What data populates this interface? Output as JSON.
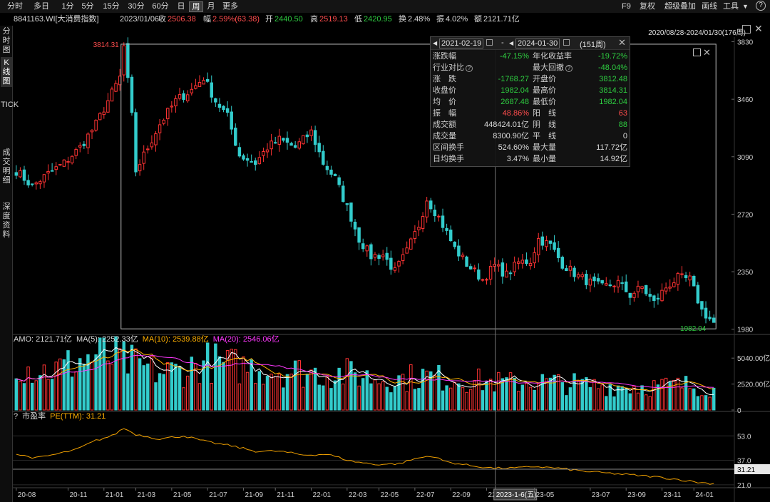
{
  "toolbar": {
    "periods": [
      "分时",
      "多日",
      "1分",
      "5分",
      "15分",
      "30分",
      "60分",
      "日",
      "周",
      "月",
      "更多"
    ],
    "active_period": "周",
    "right_items": [
      "F9",
      "复权",
      "超级叠加",
      "画线",
      "工具"
    ]
  },
  "info": {
    "code_name": "8841163.WI[大消费指数]",
    "date": "2023/01/06",
    "close_label": "收",
    "close": "2506.38",
    "change_label": "幅",
    "change": "2.59%(63.38)",
    "open_label": "开",
    "open": "2440.50",
    "high_label": "高",
    "high": "2519.13",
    "low_label": "低",
    "low": "2420.95",
    "turnover_label": "换",
    "turnover": "2.48%",
    "amplitude_label": "振",
    "amplitude": "4.02%",
    "amount_label": "额",
    "amount": "2121.71亿"
  },
  "sidebar": {
    "tabs": [
      "分时图",
      "K线图",
      "TICK",
      "成交明细",
      "深度资料"
    ],
    "active": "K线图"
  },
  "range_label": "2020/08/28-2024/01/30(176周)",
  "popup": {
    "start_date": "2021-02-19",
    "end_date": "2024-01-30",
    "sep": "-",
    "weeks": "(151周)",
    "rows": [
      {
        "l1": "涨跌幅",
        "v1": "-47.15%",
        "c1": "g",
        "l2": "年化收益率",
        "v2": "-19.72%",
        "c2": "g"
      },
      {
        "l1": "行业对比",
        "q1": true,
        "v1": "",
        "c1": "w",
        "l2": "最大回撤",
        "q2": true,
        "v2": "-48.04%",
        "c2": "g"
      },
      {
        "l1": "涨　跌",
        "v1": "-1768.27",
        "c1": "g",
        "l2": "开盘价",
        "v2": "3812.48",
        "c2": "g"
      },
      {
        "l1": "收盘价",
        "v1": "1982.04",
        "c1": "g",
        "l2": "最高价",
        "v2": "3814.31",
        "c2": "g"
      },
      {
        "l1": "均　价",
        "v1": "2687.48",
        "c1": "g",
        "l2": "最低价",
        "v2": "1982.04",
        "c2": "g"
      },
      {
        "l1": "振　幅",
        "v1": "48.86%",
        "c1": "r",
        "l2": "阳　线",
        "v2": "63",
        "c2": "r"
      },
      {
        "l1": "成交额",
        "v1": "448424.01亿",
        "c1": "w",
        "l2": "阴　线",
        "v2": "88",
        "c2": "g"
      },
      {
        "l1": "成交量",
        "v1": "8300.90亿",
        "c1": "w",
        "l2": "平　线",
        "v2": "0",
        "c2": "w"
      },
      {
        "l1": "区间换手",
        "v1": "524.60%",
        "c1": "w",
        "l2": "最大量",
        "v2": "117.72亿",
        "c2": "w"
      },
      {
        "l1": "日均换手",
        "v1": "3.47%",
        "c1": "w",
        "l2": "最小量",
        "v2": "14.92亿",
        "c2": "w"
      }
    ]
  },
  "volume_header": {
    "amo": "AMO: 2121.71亿",
    "ma5": "MA(5): 2252.33亿",
    "ma10": "MA(10): 2539.88亿",
    "ma20": "MA(20): 2546.06亿"
  },
  "pe_header": {
    "q": "?",
    "label": "市盈率",
    "pe": "PE(TTM): 31.21"
  },
  "colors": {
    "up": "#ff3333",
    "down": "#33cccc",
    "ma5": "#ffffff",
    "ma10": "#ffb000",
    "ma20": "#ff38ff",
    "pe": "#f0a000"
  },
  "chart_data": [
    {
      "type": "candlestick",
      "title": "8841163.WI[大消费指数] 周K线",
      "x_ticks": [
        "20-08",
        "20-11",
        "21-01",
        "21-03",
        "21-05",
        "21-07",
        "21-09",
        "21-11",
        "22-01",
        "22-03",
        "22-05",
        "22-07",
        "22-09",
        "22-11",
        "2023-1-6(五)",
        "23-05",
        "23-07",
        "23-09",
        "23-11",
        "24-01"
      ],
      "y_ticks": [
        1980,
        2350,
        2720,
        3090,
        3460,
        3830
      ],
      "ylim": [
        1960,
        3860
      ],
      "weeks": 176,
      "selection": {
        "start": "2021-02-19",
        "end": "2024-01-30",
        "high_label": "3814.31",
        "low_label": "1982.04"
      },
      "close_anchors": [
        [
          0,
          3000
        ],
        [
          4,
          2900
        ],
        [
          8,
          2980
        ],
        [
          12,
          3050
        ],
        [
          16,
          3150
        ],
        [
          20,
          3300
        ],
        [
          24,
          3500
        ],
        [
          26,
          3600
        ],
        [
          27,
          3800
        ],
        [
          29,
          3350
        ],
        [
          30,
          3000
        ],
        [
          33,
          3150
        ],
        [
          36,
          3300
        ],
        [
          40,
          3450
        ],
        [
          44,
          3520
        ],
        [
          47,
          3600
        ],
        [
          50,
          3450
        ],
        [
          53,
          3350
        ],
        [
          56,
          3100
        ],
        [
          60,
          3050
        ],
        [
          63,
          3150
        ],
        [
          66,
          3200
        ],
        [
          70,
          3150
        ],
        [
          74,
          3250
        ],
        [
          77,
          3050
        ],
        [
          80,
          2950
        ],
        [
          84,
          2700
        ],
        [
          86,
          2560
        ],
        [
          89,
          2450
        ],
        [
          92,
          2460
        ],
        [
          95,
          2350
        ],
        [
          98,
          2480
        ],
        [
          101,
          2650
        ],
        [
          103,
          2820
        ],
        [
          106,
          2700
        ],
        [
          110,
          2500
        ],
        [
          113,
          2400
        ],
        [
          117,
          2300
        ],
        [
          120,
          2390
        ],
        [
          123,
          2330
        ],
        [
          126,
          2410
        ],
        [
          129,
          2420
        ],
        [
          131,
          2560
        ],
        [
          134,
          2520
        ],
        [
          137,
          2400
        ],
        [
          141,
          2320
        ],
        [
          144,
          2280
        ],
        [
          147,
          2250
        ],
        [
          151,
          2280
        ],
        [
          154,
          2200
        ],
        [
          157,
          2250
        ],
        [
          160,
          2150
        ],
        [
          163,
          2250
        ],
        [
          166,
          2310
        ],
        [
          169,
          2300
        ],
        [
          172,
          2100
        ],
        [
          175,
          2020
        ]
      ]
    },
    {
      "type": "bar",
      "title": "AMO",
      "unit": "亿",
      "y_ticks": [
        0,
        2520,
        5040
      ],
      "ylim": [
        0,
        6300
      ],
      "last_values": {
        "amo": 2121.71,
        "ma5": 2252.33,
        "ma10": 2539.88,
        "ma20": 2546.06
      },
      "amo_anchors": [
        [
          0,
          4600
        ],
        [
          5,
          3800
        ],
        [
          10,
          3900
        ],
        [
          16,
          4800
        ],
        [
          22,
          5300
        ],
        [
          26,
          4900
        ],
        [
          30,
          4300
        ],
        [
          36,
          3600
        ],
        [
          42,
          3900
        ],
        [
          48,
          4700
        ],
        [
          54,
          4300
        ],
        [
          60,
          4100
        ],
        [
          68,
          3800
        ],
        [
          76,
          3600
        ],
        [
          84,
          3500
        ],
        [
          90,
          3100
        ],
        [
          96,
          3000
        ],
        [
          102,
          3300
        ],
        [
          106,
          3100
        ],
        [
          112,
          3000
        ],
        [
          118,
          2700
        ],
        [
          124,
          2600
        ],
        [
          130,
          2800
        ],
        [
          136,
          2600
        ],
        [
          144,
          2400
        ],
        [
          152,
          2300
        ],
        [
          160,
          2300
        ],
        [
          168,
          2400
        ],
        [
          175,
          2121.71
        ]
      ]
    },
    {
      "type": "line",
      "title": "市盈率 PE(TTM)",
      "y_ticks": [
        21.0,
        37.0,
        53.0
      ],
      "ylim": [
        20,
        62
      ],
      "last_value": 31.21,
      "pe_anchors": [
        [
          0,
          41
        ],
        [
          5,
          38.5
        ],
        [
          10,
          41
        ],
        [
          15,
          44
        ],
        [
          20,
          50
        ],
        [
          24,
          53
        ],
        [
          27,
          58
        ],
        [
          30,
          54
        ],
        [
          36,
          51
        ],
        [
          42,
          53
        ],
        [
          48,
          49
        ],
        [
          54,
          46.5
        ],
        [
          60,
          43
        ],
        [
          66,
          43
        ],
        [
          72,
          40.5
        ],
        [
          78,
          41
        ],
        [
          84,
          36.5
        ],
        [
          90,
          34.3
        ],
        [
          96,
          34.8
        ],
        [
          100,
          38
        ],
        [
          104,
          40
        ],
        [
          108,
          36
        ],
        [
          114,
          33.5
        ],
        [
          120,
          31.8
        ],
        [
          126,
          32
        ],
        [
          130,
          33
        ],
        [
          136,
          31.8
        ],
        [
          142,
          30
        ],
        [
          148,
          28.7
        ],
        [
          154,
          27.5
        ],
        [
          160,
          26.3
        ],
        [
          166,
          24.5
        ],
        [
          172,
          22.3
        ],
        [
          175,
          21.8
        ]
      ]
    }
  ]
}
